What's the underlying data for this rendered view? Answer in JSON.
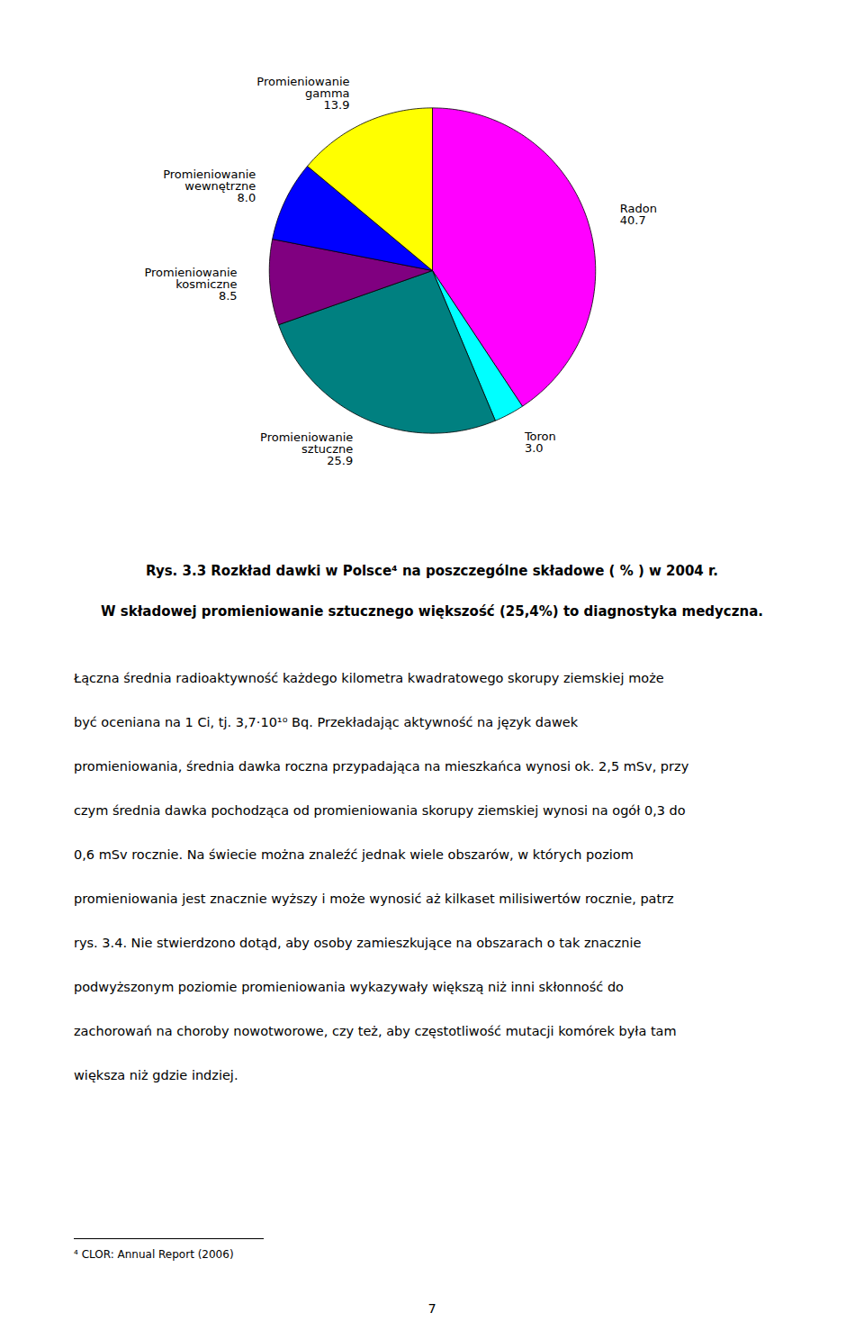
{
  "chart_data": {
    "type": "pie",
    "title": "Rys. 3.3  Rozkład  dawki w Polsce⁴ na poszczególne składowe ( % ) w 2004 r.",
    "subtitle": "W składowej promieniowanie sztucznego większość (25,4%) to diagnostyka medyczna.",
    "categories": [
      "Radon",
      "Toron",
      "Promieniowanie sztuczne",
      "Promieniowanie kosmiczne",
      "Promieniowanie wewnętrzne",
      "Promieniowanie gamma"
    ],
    "values": [
      40.7,
      3.0,
      25.9,
      8.5,
      8.0,
      13.9
    ],
    "value_labels": [
      "40.7",
      "3.0",
      "25.9",
      "8.5",
      "8.0",
      "13.9"
    ],
    "colors": [
      "#FF00FF",
      "#00FFFF",
      "#008080",
      "#800080",
      "#0000FF",
      "#FFFF00"
    ],
    "data_labels": true,
    "annotations": [
      "Łączna średnia radioaktywność każdego kilometra kwadratowego skorupy ziemskiej może",
      "być oceniana na 1 Ci, tj. 3,7·10¹⁰ Bq. Przekładając aktywność na język dawek",
      "promieniowania, średnia dawka roczna przypadająca na mieszkańca wynosi ok. 2,5 mSv, przy",
      "czym średnia dawka pochodząca od promieniowania skorupy ziemskiej wynosi na ogół 0,3 do",
      "0,6 mSv rocznie. Na świecie można znaleźć jednak wiele obszarów, w których poziom",
      "promieniowania jest znacznie wyższy i może wynosić aż kilkaset milisiwertów rocznie, patrz",
      "rys. 3.4. Nie stwierdzono dotąd, aby osoby zamieszkujące na obszarach o tak znacznie",
      "podwyższonym poziomie promieniowania wykazywały większą niż inni skłonność do",
      "zachorowań na choroby nowotworowe, czy też, aby częstotliwość mutacji komórek była tam",
      "większa niż gdzie indziej.",
      "⁴ CLOR: Annual Report (2006)",
      "7"
    ]
  }
}
